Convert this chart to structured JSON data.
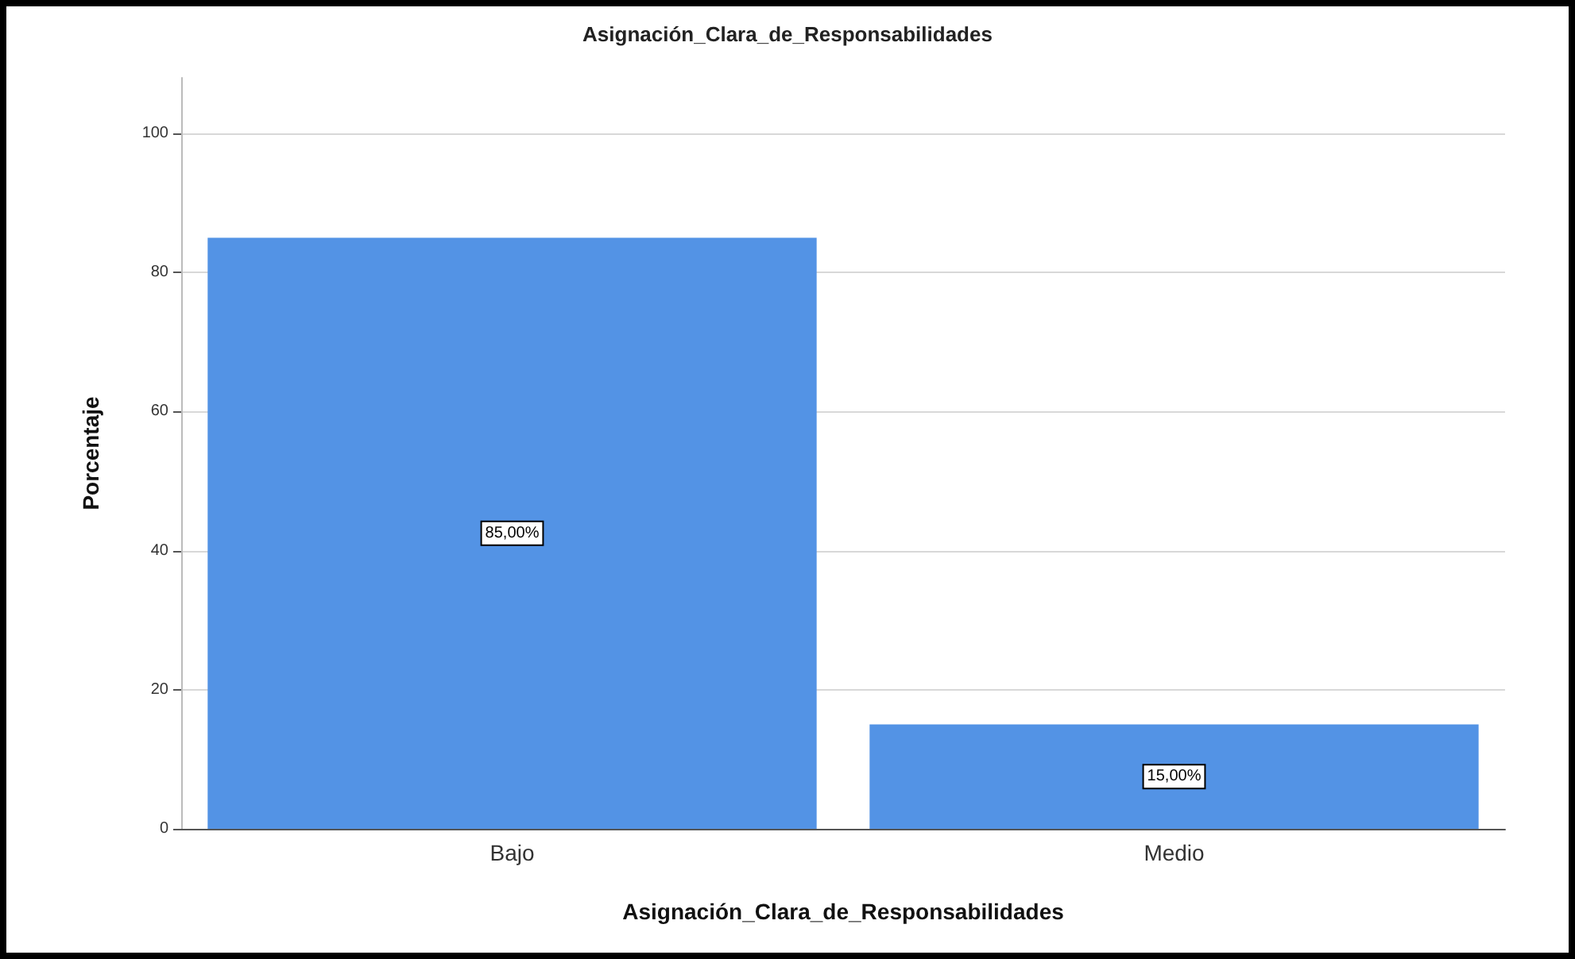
{
  "chart_data": {
    "type": "bar",
    "title": "Asignación_Clara_de_Responsabilidades",
    "xlabel": "Asignación_Clara_de_Responsabilidades",
    "ylabel": "Porcentaje",
    "categories": [
      "Bajo",
      "Medio"
    ],
    "values": [
      85,
      15
    ],
    "color": "#5393e5",
    "value_labels": [
      "85,00%",
      "15,00%"
    ],
    "ylim": [
      0,
      108
    ],
    "yticks": [
      0,
      20,
      40,
      60,
      80,
      100
    ],
    "grid": "y"
  }
}
